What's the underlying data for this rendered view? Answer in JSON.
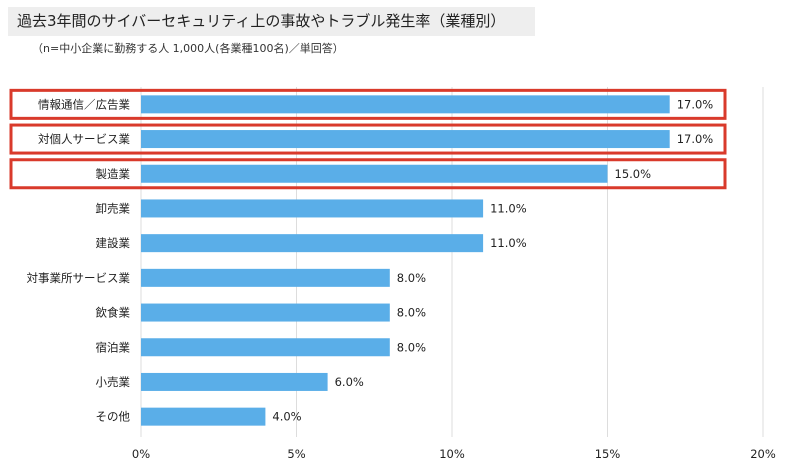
{
  "header": {
    "title": "過去3年間のサイバーセキュリティ上の事故やトラブル発生率（業種別）",
    "subtitle": "（n=中小企業に勤務する人 1,000人(各業種100名)／単回答）"
  },
  "colors": {
    "bar": "#5aaee8",
    "highlight_border": "#d93a2b",
    "grid": "#dddddd",
    "title_background": "#eeeeee"
  },
  "chart_data": {
    "type": "bar",
    "orientation": "horizontal",
    "title": "過去3年間のサイバーセキュリティ上の事故やトラブル発生率（業種別）",
    "subtitle": "（n=中小企業に勤務する人 1,000人(各業種100名)／単回答）",
    "categories": [
      "情報通信／広告業",
      "対個人サービス業",
      "製造業",
      "卸売業",
      "建設業",
      "対事業所サービス業",
      "飲食業",
      "宿泊業",
      "小売業",
      "その他"
    ],
    "values": [
      17.0,
      17.0,
      15.0,
      11.0,
      11.0,
      8.0,
      8.0,
      8.0,
      6.0,
      4.0
    ],
    "value_labels": [
      "17.0%",
      "17.0%",
      "15.0%",
      "11.0%",
      "11.0%",
      "8.0%",
      "8.0%",
      "8.0%",
      "6.0%",
      "4.0%"
    ],
    "xlim": [
      0,
      20
    ],
    "xticks": [
      0,
      5,
      10,
      15,
      20
    ],
    "xtick_labels": [
      "0%",
      "5%",
      "10%",
      "15%",
      "20%"
    ],
    "grid": true,
    "highlighted_categories": [
      "情報通信／広告業",
      "対個人サービス業",
      "製造業"
    ]
  }
}
